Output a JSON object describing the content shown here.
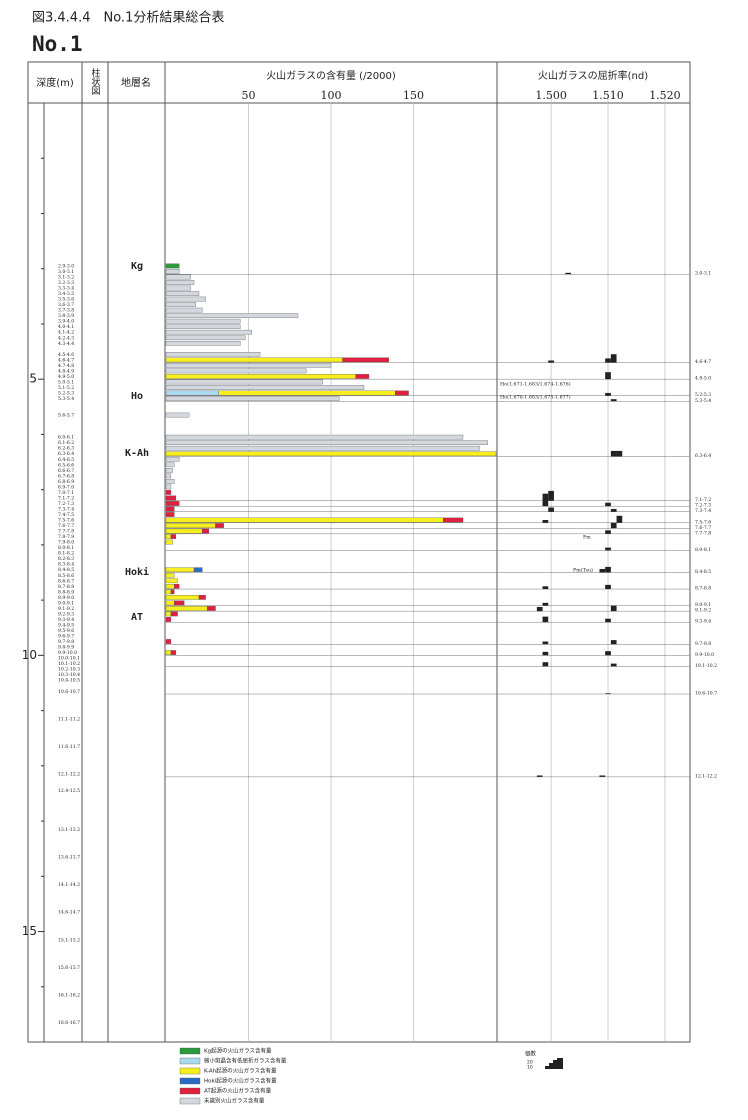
{
  "chart_data": {
    "type": "stacked_barh_log",
    "title": "図3.4.4.4　No.1分析結果総合表",
    "subtitle": "No.1",
    "headers": {
      "depth": "深度(m)",
      "column": "柱状図",
      "layer": "地層名",
      "content": "火山ガラスの含有量 (/2000)",
      "refraction": "火山ガラスの屈折率(nd)"
    },
    "ylim": [
      0,
      17
    ],
    "yticks": [
      5,
      10,
      15
    ],
    "minor_yticks": [
      1,
      2,
      3,
      4,
      6,
      7,
      8,
      9,
      11,
      12,
      13,
      14,
      16
    ],
    "xlim": [
      0,
      200
    ],
    "xticks": [
      50,
      100,
      150
    ],
    "ri_lim": [
      1.4905,
      1.5244
    ],
    "ri_ticks": [
      {
        "value": 1.5,
        "label": "1.500"
      },
      {
        "value": 1.51,
        "label": "1.510"
      },
      {
        "value": 1.52,
        "label": "1.520"
      }
    ],
    "layers": [
      "Kg",
      "Ho",
      "K-Ah",
      "Hoki",
      "AT"
    ],
    "samples": [
      {
        "label": "2.9-3.0",
        "from": 2.9,
        "to": 3.0
      },
      {
        "label": "3.0-3.1",
        "from": 3.0,
        "to": 3.1
      },
      {
        "label": "3.1-3.2",
        "from": 3.1,
        "to": 3.2
      },
      {
        "label": "3.2-3.3",
        "from": 3.2,
        "to": 3.3
      },
      {
        "label": "3.3-3.4",
        "from": 3.3,
        "to": 3.4
      },
      {
        "label": "3.4-3.5",
        "from": 3.4,
        "to": 3.5
      },
      {
        "label": "3.5-3.6",
        "from": 3.5,
        "to": 3.6
      },
      {
        "label": "3.6-3.7",
        "from": 3.6,
        "to": 3.7
      },
      {
        "label": "3.7-3.8",
        "from": 3.7,
        "to": 3.8
      },
      {
        "label": "3.8-3.9",
        "from": 3.8,
        "to": 3.9
      },
      {
        "label": "3.9-4.0",
        "from": 3.9,
        "to": 4.0
      },
      {
        "label": "4.0-4.1",
        "from": 4.0,
        "to": 4.1
      },
      {
        "label": "4.1-4.2",
        "from": 4.1,
        "to": 4.2
      },
      {
        "label": "4.2-4.3",
        "from": 4.2,
        "to": 4.3
      },
      {
        "label": "4.3-4.4",
        "from": 4.3,
        "to": 4.4
      },
      {
        "label": "4.5-4.6",
        "from": 4.5,
        "to": 4.6
      },
      {
        "label": "4.6-4.7",
        "from": 4.6,
        "to": 4.7
      },
      {
        "label": "4.7-4.8",
        "from": 4.7,
        "to": 4.8
      },
      {
        "label": "4.8-4.9",
        "from": 4.8,
        "to": 4.9
      },
      {
        "label": "4.9-5.0",
        "from": 4.9,
        "to": 5.0
      },
      {
        "label": "5.0-5.1",
        "from": 5.0,
        "to": 5.1
      },
      {
        "label": "5.1-5.2",
        "from": 5.1,
        "to": 5.2
      },
      {
        "label": "5.2-5.3",
        "from": 5.2,
        "to": 5.3
      },
      {
        "label": "5.3-5.4",
        "from": 5.3,
        "to": 5.4
      },
      {
        "label": "5.6-5.7",
        "from": 5.6,
        "to": 5.7
      },
      {
        "label": "6.0-6.1",
        "from": 6.0,
        "to": 6.1
      },
      {
        "label": "6.1-6.2",
        "from": 6.1,
        "to": 6.2
      },
      {
        "label": "6.2-6.3",
        "from": 6.2,
        "to": 6.3
      },
      {
        "label": "6.3-6.4",
        "from": 6.3,
        "to": 6.4
      },
      {
        "label": "6.4-6.5",
        "from": 6.4,
        "to": 6.5
      },
      {
        "label": "6.5-6.6",
        "from": 6.5,
        "to": 6.6
      },
      {
        "label": "6.6-6.7",
        "from": 6.6,
        "to": 6.7
      },
      {
        "label": "6.7-6.8",
        "from": 6.7,
        "to": 6.8
      },
      {
        "label": "6.8-6.9",
        "from": 6.8,
        "to": 6.9
      },
      {
        "label": "6.9-7.0",
        "from": 6.9,
        "to": 7.0
      },
      {
        "label": "7.0-7.1",
        "from": 7.0,
        "to": 7.1
      },
      {
        "label": "7.1-7.2",
        "from": 7.1,
        "to": 7.2
      },
      {
        "label": "7.2-7.3",
        "from": 7.2,
        "to": 7.3
      },
      {
        "label": "7.3-7.4",
        "from": 7.3,
        "to": 7.4
      },
      {
        "label": "7.4-7.5",
        "from": 7.4,
        "to": 7.5
      },
      {
        "label": "7.5-7.6",
        "from": 7.5,
        "to": 7.6
      },
      {
        "label": "7.6-7.7",
        "from": 7.6,
        "to": 7.7
      },
      {
        "label": "7.7-7.8",
        "from": 7.7,
        "to": 7.8
      },
      {
        "label": "7.8-7.9",
        "from": 7.8,
        "to": 7.9
      },
      {
        "label": "7.9-8.0",
        "from": 7.9,
        "to": 8.0
      },
      {
        "label": "8.0-8.1",
        "from": 8.0,
        "to": 8.1
      },
      {
        "label": "8.1-8.2",
        "from": 8.1,
        "to": 8.2
      },
      {
        "label": "8.2-8.3",
        "from": 8.2,
        "to": 8.3
      },
      {
        "label": "8.3-8.4",
        "from": 8.3,
        "to": 8.4
      },
      {
        "label": "8.4-8.5",
        "from": 8.4,
        "to": 8.5
      },
      {
        "label": "8.5-8.6",
        "from": 8.5,
        "to": 8.6
      },
      {
        "label": "8.6-8.7",
        "from": 8.6,
        "to": 8.7
      },
      {
        "label": "8.7-8.8",
        "from": 8.7,
        "to": 8.8
      },
      {
        "label": "8.8-8.9",
        "from": 8.8,
        "to": 8.9
      },
      {
        "label": "8.9-9.0",
        "from": 8.9,
        "to": 9.0
      },
      {
        "label": "9.0-9.1",
        "from": 9.0,
        "to": 9.1
      },
      {
        "label": "9.1-9.2",
        "from": 9.1,
        "to": 9.2
      },
      {
        "label": "9.2-9.3",
        "from": 9.2,
        "to": 9.3
      },
      {
        "label": "9.3-9.4",
        "from": 9.3,
        "to": 9.4
      },
      {
        "label": "9.4-9.5",
        "from": 9.4,
        "to": 9.5
      },
      {
        "label": "9.5-9.6",
        "from": 9.5,
        "to": 9.6
      },
      {
        "label": "9.6-9.7",
        "from": 9.6,
        "to": 9.7
      },
      {
        "label": "9.7-9.8",
        "from": 9.7,
        "to": 9.8
      },
      {
        "label": "9.8-9.9",
        "from": 9.8,
        "to": 9.9
      },
      {
        "label": "9.9-10.0",
        "from": 9.9,
        "to": 10.0
      },
      {
        "label": "10.0-10.1",
        "from": 10.0,
        "to": 10.1
      },
      {
        "label": "10.1-10.2",
        "from": 10.1,
        "to": 10.2
      },
      {
        "label": "10.2-10.3",
        "from": 10.2,
        "to": 10.3
      },
      {
        "label": "10.3-10.4",
        "from": 10.3,
        "to": 10.4
      },
      {
        "label": "10.4-10.5",
        "from": 10.4,
        "to": 10.5
      },
      {
        "label": "10.6-10.7",
        "from": 10.6,
        "to": 10.7
      },
      {
        "label": "11.1-11.2",
        "from": 11.1,
        "to": 11.2
      },
      {
        "label": "11.6-11.7",
        "from": 11.6,
        "to": 11.7
      },
      {
        "label": "12.1-12.2",
        "from": 12.1,
        "to": 12.2
      },
      {
        "label": "12.4-12.5",
        "from": 12.4,
        "to": 12.5
      },
      {
        "label": "13.1-13.2",
        "from": 13.1,
        "to": 13.2
      },
      {
        "label": "13.6-13.7",
        "from": 13.6,
        "to": 13.7
      },
      {
        "label": "14.1-14.2",
        "from": 14.1,
        "to": 14.2
      },
      {
        "label": "14.6-14.7",
        "from": 14.6,
        "to": 14.7
      },
      {
        "label": "15.1-15.2",
        "from": 15.1,
        "to": 15.2
      },
      {
        "label": "15.6-15.7",
        "from": 15.6,
        "to": 15.7
      },
      {
        "label": "16.1-16.2",
        "from": 16.1,
        "to": 16.2
      },
      {
        "label": "16.6-16.7",
        "from": 16.6,
        "to": 16.7
      }
    ],
    "series": [
      {
        "name": "Kg起源の火山ガラス含有量",
        "color": "#2e9a3e",
        "values": [
          8,
          0,
          0,
          0,
          0,
          0,
          0,
          0,
          0,
          0,
          0,
          0,
          0,
          0,
          0,
          0,
          0,
          0,
          0,
          0,
          0,
          0,
          0,
          0,
          0,
          0,
          0,
          0,
          0,
          0,
          0,
          0,
          0,
          0,
          0,
          0,
          0,
          0,
          0,
          0,
          0,
          0,
          0,
          0,
          0,
          0,
          0,
          0,
          0,
          0,
          0,
          0,
          0,
          0,
          0,
          0,
          0,
          0,
          0,
          0,
          0,
          0,
          0,
          0,
          0,
          0,
          0,
          0,
          0,
          0,
          0,
          0,
          0,
          0,
          0,
          0,
          0,
          0,
          0,
          0,
          0,
          0,
          0
        ]
      },
      {
        "name": "微小斑晶含有低屈折ガラス含有量",
        "color": "#a9d8ef",
        "values": [
          0,
          0,
          0,
          0,
          0,
          0,
          0,
          0,
          0,
          0,
          0,
          0,
          0,
          0,
          0,
          0,
          0,
          0,
          0,
          0,
          0,
          0,
          32,
          0,
          0,
          0,
          0,
          0,
          0,
          0,
          0,
          0,
          0,
          0,
          0,
          0,
          0,
          0,
          0,
          0,
          0,
          0,
          0,
          0,
          0,
          0,
          0,
          0,
          0,
          0,
          0,
          0,
          0,
          0,
          0,
          0,
          0,
          0,
          0,
          0,
          0,
          0,
          0,
          0,
          0,
          0,
          0,
          0,
          0,
          0,
          0,
          0,
          0,
          0,
          0,
          0,
          0,
          0,
          0,
          0,
          0,
          0,
          0
        ]
      },
      {
        "name": "K-Ah起源の火山ガラス含有量",
        "color": "#f7ee1e",
        "values": [
          0,
          0,
          0,
          0,
          0,
          0,
          0,
          0,
          0,
          0,
          0,
          0,
          0,
          0,
          0,
          0,
          107,
          0,
          0,
          115,
          0,
          0,
          107,
          0,
          0,
          0,
          0,
          0,
          200,
          0,
          0,
          0,
          0,
          0,
          0,
          0,
          0,
          0,
          0,
          0,
          168,
          30,
          22,
          3,
          4,
          0,
          0,
          0,
          0,
          17,
          5,
          7,
          5,
          3,
          20,
          5,
          25,
          3,
          0,
          0,
          0,
          0,
          0,
          0,
          3,
          0,
          0,
          0,
          0,
          0,
          0,
          0,
          0,
          0,
          0,
          0,
          0,
          0,
          0,
          0,
          0,
          0,
          0
        ]
      },
      {
        "name": "Hoki起源の火山ガラス含有量",
        "color": "#2a6cc4",
        "values": [
          0,
          0,
          0,
          0,
          0,
          0,
          0,
          0,
          0,
          0,
          0,
          0,
          0,
          0,
          0,
          0,
          0,
          0,
          0,
          0,
          0,
          0,
          0,
          0,
          0,
          0,
          0,
          0,
          0,
          0,
          0,
          0,
          0,
          0,
          0,
          0,
          0,
          0,
          0,
          0,
          0,
          0,
          0,
          0,
          0,
          0,
          0,
          0,
          0,
          5,
          0,
          0,
          0,
          0,
          0,
          0,
          0,
          0,
          0,
          0,
          0,
          0,
          0,
          0,
          0,
          0,
          0,
          0,
          0,
          0,
          0,
          0,
          0,
          0,
          0,
          0,
          0,
          0,
          0,
          0,
          0,
          0,
          0
        ]
      },
      {
        "name": "AT起源の火山ガラス含有量",
        "color": "#e0203f",
        "values": [
          0,
          0,
          0,
          0,
          0,
          0,
          0,
          0,
          0,
          0,
          0,
          0,
          0,
          0,
          0,
          0,
          28,
          0,
          0,
          8,
          0,
          0,
          8,
          0,
          0,
          0,
          0,
          0,
          0,
          0,
          0,
          0,
          0,
          0,
          0,
          3,
          6,
          8,
          5,
          5,
          12,
          5,
          4,
          3,
          0,
          0,
          0,
          0,
          0,
          0,
          0,
          0,
          3,
          2,
          4,
          6,
          5,
          4,
          3,
          0,
          0,
          0,
          3,
          0,
          3,
          0,
          0,
          0,
          0,
          0,
          0,
          0,
          0,
          0,
          0,
          0,
          0,
          0,
          0,
          0,
          0,
          0,
          0
        ]
      },
      {
        "name": "未識別火山ガラス含有量",
        "color": "#d3d8de",
        "values": [
          0,
          8,
          15,
          17,
          15,
          20,
          24,
          18,
          22,
          80,
          45,
          45,
          52,
          48,
          45,
          57,
          0,
          100,
          85,
          0,
          95,
          120,
          0,
          105,
          14,
          180,
          195,
          190,
          0,
          8,
          5,
          4,
          3,
          5,
          3,
          0,
          0,
          0,
          0,
          0,
          0,
          0,
          0,
          0,
          0,
          0,
          0,
          0,
          0,
          0,
          0,
          0,
          0,
          0,
          0,
          0,
          0,
          0,
          0,
          0,
          0,
          0,
          0,
          0,
          0,
          0,
          0,
          0,
          0,
          0,
          0,
          0,
          0,
          0,
          0,
          0,
          0,
          0,
          0,
          0,
          0,
          0,
          0
        ]
      }
    ],
    "refraction": [
      {
        "sample": 1,
        "ri": 1.503,
        "n": 2
      },
      {
        "sample": 16,
        "ri": 1.5,
        "n": 3
      },
      {
        "sample": 16,
        "ri": 1.51,
        "n": 6
      },
      {
        "sample": 16,
        "ri": 1.511,
        "n": 12
      },
      {
        "sample": 19,
        "ri": 1.51,
        "n": 10
      },
      {
        "sample": 22,
        "ri": 1.51,
        "n": 4
      },
      {
        "sample": 23,
        "ri": 1.511,
        "n": 3
      },
      {
        "sample": 28,
        "ri": 1.511,
        "n": 8
      },
      {
        "sample": 28,
        "ri": 1.512,
        "n": 8
      },
      {
        "sample": 36,
        "ri": 1.499,
        "n": 10
      },
      {
        "sample": 36,
        "ri": 1.5,
        "n": 14
      },
      {
        "sample": 37,
        "ri": 1.499,
        "n": 8
      },
      {
        "sample": 37,
        "ri": 1.51,
        "n": 5
      },
      {
        "sample": 38,
        "ri": 1.5,
        "n": 6
      },
      {
        "sample": 38,
        "ri": 1.511,
        "n": 4
      },
      {
        "sample": 40,
        "ri": 1.499,
        "n": 4
      },
      {
        "sample": 40,
        "ri": 1.512,
        "n": 10
      },
      {
        "sample": 41,
        "ri": 1.511,
        "n": 8
      },
      {
        "sample": 42,
        "ri": 1.51,
        "n": 5
      },
      {
        "sample": 45,
        "ri": 1.51,
        "n": 4
      },
      {
        "sample": 49,
        "ri": 1.509,
        "n": 5
      },
      {
        "sample": 49,
        "ri": 1.51,
        "n": 8
      },
      {
        "sample": 52,
        "ri": 1.499,
        "n": 4
      },
      {
        "sample": 52,
        "ri": 1.51,
        "n": 6
      },
      {
        "sample": 55,
        "ri": 1.499,
        "n": 4
      },
      {
        "sample": 56,
        "ri": 1.498,
        "n": 6
      },
      {
        "sample": 56,
        "ri": 1.511,
        "n": 8
      },
      {
        "sample": 58,
        "ri": 1.499,
        "n": 8
      },
      {
        "sample": 58,
        "ri": 1.51,
        "n": 5
      },
      {
        "sample": 62,
        "ri": 1.499,
        "n": 4
      },
      {
        "sample": 62,
        "ri": 1.511,
        "n": 6
      },
      {
        "sample": 64,
        "ri": 1.499,
        "n": 5
      },
      {
        "sample": 64,
        "ri": 1.51,
        "n": 6
      },
      {
        "sample": 66,
        "ri": 1.499,
        "n": 6
      },
      {
        "sample": 66,
        "ri": 1.511,
        "n": 4
      },
      {
        "sample": 70,
        "ri": 1.51,
        "n": 1
      },
      {
        "sample": 73,
        "ri": 1.498,
        "n": 2
      },
      {
        "sample": 73,
        "ri": 1.509,
        "n": 2
      }
    ],
    "annotations": [
      "Ho(1.671-1.683/1.674-1.676)",
      "Ho(1.670-1.683/1.675-1.677)",
      "Pm",
      "Pm(Tsu)"
    ],
    "count_legend": {
      "title": "個数",
      "ticks": [
        20,
        10
      ]
    }
  }
}
